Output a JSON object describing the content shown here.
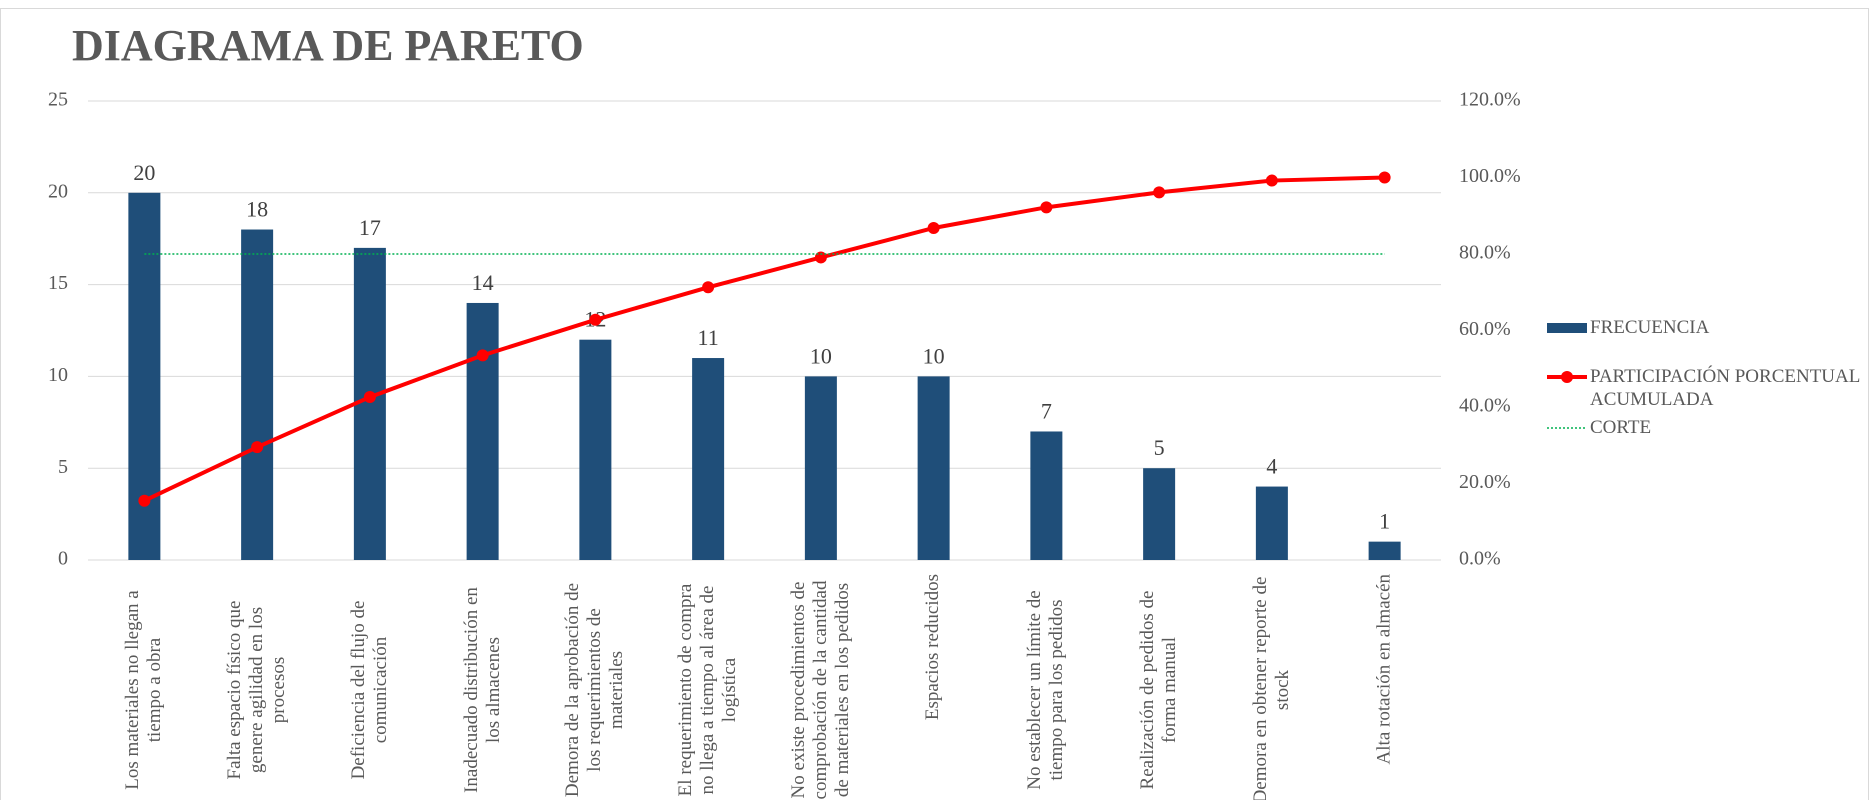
{
  "chart_data": {
    "type": "pareto",
    "title": "DIAGRAMA DE PARETO",
    "categories": [
      "Los materiales no llegan a tiempo a obra",
      "Falta espacio físico que genere agilidad en los procesos",
      "Deficiencia del flujo de comunicación",
      "Inadecuado distribución en los almacenes",
      "Demora de la aprobación de los requerimientos de materiales",
      "El requerimiento de compra no llega a tiempo al área de logística",
      "No existe procedimientos de comprobación de la cantidad de materiales en los pedidos",
      "Espacios reducidos",
      "No establecer un límite de tiempo para los pedidos",
      "Realización de pedidos de forma manual",
      "Demora en obtener reporte de stock",
      "Alta rotación en almacén"
    ],
    "series": [
      {
        "name": "FRECUENCIA",
        "color": "#1f4e79",
        "values": [
          20,
          18,
          17,
          14,
          12,
          11,
          10,
          10,
          7,
          5,
          4,
          1
        ]
      },
      {
        "name": "PARTICIPACIÓN PORCENTUAL ACUMULADA",
        "color": "#ff0000",
        "axis": "y2",
        "values": [
          15.5,
          29.5,
          42.6,
          53.5,
          62.8,
          71.3,
          79.1,
          86.8,
          92.2,
          96.1,
          99.2,
          100.0
        ]
      },
      {
        "name": "CORTE",
        "color": "#00b050",
        "axis": "y2",
        "values": [
          80,
          80,
          80,
          80,
          80,
          80,
          80,
          80,
          80,
          80,
          80,
          80
        ]
      }
    ],
    "ylim": [
      0,
      25
    ],
    "yticks": [
      0,
      5,
      10,
      15,
      20,
      25
    ],
    "y2lim": [
      0,
      120
    ],
    "y2ticks": [
      {
        "value": 0,
        "label": "0.0%"
      },
      {
        "value": 20,
        "label": "20.0%"
      },
      {
        "value": 40,
        "label": "40.0%"
      },
      {
        "value": 60,
        "label": "60.0%"
      },
      {
        "value": 80,
        "label": "80.0%"
      },
      {
        "value": 100,
        "label": "100.0%"
      },
      {
        "value": 120,
        "label": "120.0%"
      }
    ],
    "grid": true,
    "legend": "right"
  }
}
